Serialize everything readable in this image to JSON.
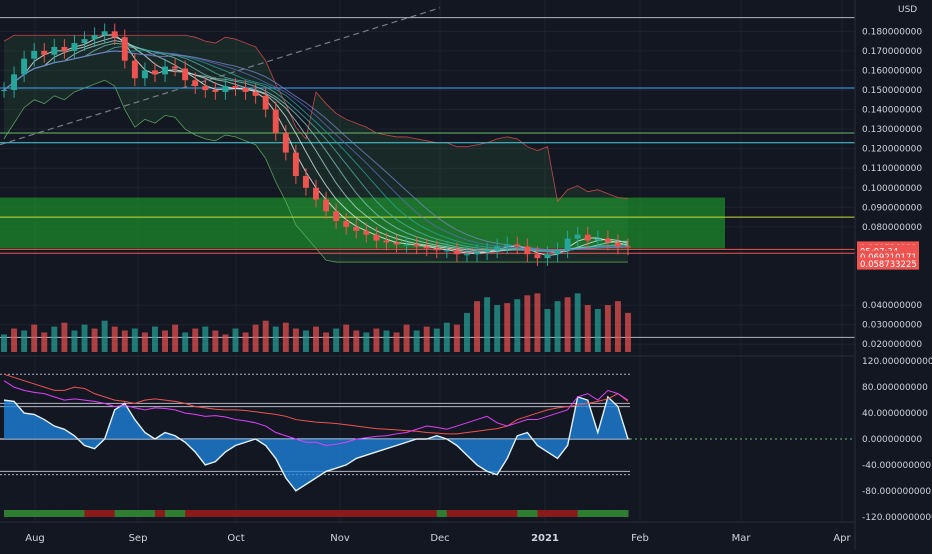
{
  "chart_data": [
    {
      "type": "candlestick",
      "panel": "price",
      "currency_label": "USD",
      "x_tick_labels": [
        "Aug",
        "Sep",
        "Oct",
        "Nov",
        "Dec",
        "2021",
        "Feb",
        "Mar",
        "Apr"
      ],
      "y_tick_labels": [
        "0.180000000",
        "0.170000000",
        "0.160000000",
        "0.150000000",
        "0.140000000",
        "0.130000000",
        "0.120000000",
        "0.110000000",
        "0.100000000",
        "0.090000000",
        "0.080000000",
        "0.040000000",
        "0.030000000",
        "0.020000000"
      ],
      "y_ticks": [
        0.18,
        0.17,
        0.16,
        0.15,
        0.14,
        0.13,
        0.12,
        0.11,
        0.1,
        0.09,
        0.08,
        0.04,
        0.03,
        0.02
      ],
      "ylim": [
        0.016,
        0.195
      ],
      "price_badges": [
        {
          "label": "0.069526991",
          "value": 0.0695,
          "color": "#ef5350"
        },
        {
          "label": "05:07:34",
          "value": 0.0677,
          "color": "#ef5350"
        },
        {
          "label": "0.069210171",
          "value": 0.0648,
          "color": "#ef5350"
        },
        {
          "label": "0.058733225",
          "value": 0.0612,
          "color": "#ef5350"
        }
      ],
      "horizontal_levels": [
        {
          "value": 0.187,
          "color": "#b2b5be"
        },
        {
          "value": 0.151,
          "color": "#42a5f5"
        },
        {
          "value": 0.128,
          "color": "#66bb6a"
        },
        {
          "value": 0.123,
          "color": "#4dd0e1"
        },
        {
          "value": 0.085,
          "color": "#cddc39"
        },
        {
          "value": 0.0685,
          "color": "#ef5350"
        },
        {
          "value": 0.0665,
          "color": "#ef5350"
        },
        {
          "value": 0.0235,
          "color": "#b2b5be"
        }
      ],
      "support_zone": {
        "from": 0.069,
        "to": 0.095,
        "color": "#1b8a2a"
      },
      "closes": [
        0.15,
        0.158,
        0.166,
        0.17,
        0.168,
        0.172,
        0.17,
        0.174,
        0.176,
        0.178,
        0.18,
        0.177,
        0.165,
        0.156,
        0.16,
        0.158,
        0.162,
        0.161,
        0.155,
        0.152,
        0.15,
        0.149,
        0.152,
        0.151,
        0.149,
        0.147,
        0.14,
        0.128,
        0.118,
        0.106,
        0.1,
        0.094,
        0.088,
        0.083,
        0.08,
        0.078,
        0.076,
        0.073,
        0.072,
        0.071,
        0.071,
        0.07,
        0.069,
        0.068,
        0.068,
        0.066,
        0.066,
        0.067,
        0.068,
        0.07,
        0.071,
        0.07,
        0.066,
        0.064,
        0.066,
        0.068,
        0.074,
        0.076,
        0.073,
        0.074,
        0.072,
        0.07,
        0.0695
      ],
      "volume": {
        "values": [
          0.025,
          0.028,
          0.027,
          0.03,
          0.026,
          0.029,
          0.031,
          0.027,
          0.03,
          0.028,
          0.032,
          0.029,
          0.027,
          0.028,
          0.026,
          0.029,
          0.027,
          0.03,
          0.026,
          0.028,
          0.029,
          0.027,
          0.025,
          0.028,
          0.026,
          0.03,
          0.032,
          0.029,
          0.031,
          0.028,
          0.027,
          0.029,
          0.026,
          0.028,
          0.03,
          0.027,
          0.026,
          0.028,
          0.027,
          0.026,
          0.03,
          0.027,
          0.029,
          0.028,
          0.031,
          0.03,
          0.036,
          0.042,
          0.044,
          0.04,
          0.041,
          0.043,
          0.045,
          0.046,
          0.038,
          0.042,
          0.044,
          0.046,
          0.04,
          0.038,
          0.04,
          0.042,
          0.036
        ],
        "up": [
          true,
          false,
          true,
          false,
          false,
          true,
          false,
          true,
          true,
          false,
          true,
          false,
          false,
          true,
          false,
          true,
          false,
          false,
          true,
          false,
          true,
          false,
          false,
          true,
          false,
          false,
          false,
          true,
          false,
          false,
          true,
          false,
          false,
          true,
          false,
          false,
          true,
          false,
          true,
          false,
          false,
          true,
          false,
          true,
          true,
          false,
          true,
          false,
          true,
          true,
          false,
          true,
          false,
          false,
          true,
          true,
          false,
          true,
          false,
          true,
          false,
          false,
          false
        ]
      }
    },
    {
      "type": "oscillator",
      "panel": "indicator",
      "y_tick_labels": [
        "120.000000000",
        "80.000000000",
        "40.000000000",
        "0.000000000",
        "-40.000000000",
        "-80.000000000",
        "-120.000000000"
      ],
      "y_ticks": [
        120,
        80,
        40,
        0,
        -40,
        -80,
        -120
      ],
      "ylim": [
        -125,
        125
      ],
      "reference_lines": [
        100,
        55,
        50,
        0,
        -50,
        -55
      ],
      "series": [
        {
          "color": "#1e88e5",
          "values": [
            60,
            58,
            40,
            38,
            30,
            20,
            15,
            5,
            -10,
            -15,
            0,
            45,
            55,
            30,
            10,
            0,
            10,
            5,
            -5,
            -20,
            -40,
            -35,
            -20,
            -10,
            -5,
            0,
            -10,
            -30,
            -60,
            -80,
            -70,
            -60,
            -50,
            -45,
            -40,
            -30,
            -25,
            -20,
            -15,
            -10,
            -5,
            0,
            0,
            5,
            0,
            -10,
            -25,
            -40,
            -50,
            -55,
            -30,
            5,
            10,
            -10,
            -20,
            -30,
            -10,
            65,
            60,
            10,
            65,
            50,
            0
          ]
        },
        {
          "color": "#ef5350",
          "values": [
            100,
            95,
            90,
            85,
            80,
            75,
            75,
            80,
            78,
            70,
            65,
            60,
            58,
            55,
            60,
            62,
            60,
            58,
            55,
            50,
            48,
            46,
            45,
            45,
            44,
            42,
            40,
            38,
            35,
            30,
            28,
            26,
            25,
            24,
            22,
            20,
            18,
            16,
            15,
            14,
            13,
            12,
            10,
            9,
            8,
            8,
            10,
            12,
            14,
            16,
            20,
            30,
            35,
            40,
            45,
            48,
            50,
            52,
            55,
            58,
            62,
            70,
            58
          ]
        },
        {
          "color": "#e040fb",
          "values": [
            90,
            80,
            75,
            72,
            70,
            65,
            60,
            62,
            60,
            58,
            55,
            50,
            52,
            48,
            45,
            48,
            47,
            45,
            40,
            38,
            35,
            36,
            34,
            30,
            28,
            25,
            20,
            10,
            5,
            0,
            -5,
            -5,
            -10,
            -8,
            -5,
            0,
            2,
            4,
            5,
            8,
            10,
            15,
            20,
            18,
            15,
            20,
            25,
            30,
            35,
            25,
            20,
            25,
            30,
            30,
            35,
            40,
            45,
            65,
            70,
            60,
            75,
            70,
            60
          ]
        }
      ]
    }
  ]
}
